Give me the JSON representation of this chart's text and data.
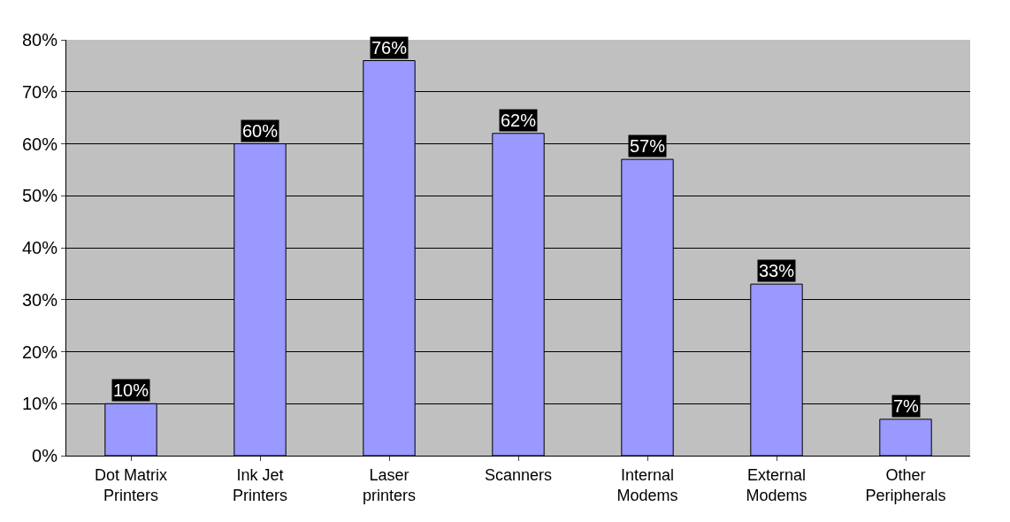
{
  "chart_data": {
    "type": "bar",
    "categories": [
      "Dot Matrix Printers",
      "Ink Jet Printers",
      "Laser printers",
      "Scanners",
      "Internal Modems",
      "External Modems",
      "Other Peripherals"
    ],
    "values": [
      10,
      60,
      76,
      62,
      57,
      33,
      7
    ],
    "value_labels": [
      "10%",
      "60%",
      "76%",
      "62%",
      "57%",
      "33%",
      "7%"
    ],
    "color": "#9999ff",
    "ylim": [
      0,
      80
    ],
    "yticks": [
      {
        "value": 0,
        "label": "0%"
      },
      {
        "value": 10,
        "label": "10%"
      },
      {
        "value": 20,
        "label": "20%"
      },
      {
        "value": 30,
        "label": "30%"
      },
      {
        "value": 40,
        "label": "40%"
      },
      {
        "value": 50,
        "label": "50%"
      },
      {
        "value": 60,
        "label": "60%"
      },
      {
        "value": 70,
        "label": "70%"
      },
      {
        "value": 80,
        "label": "80%"
      }
    ],
    "grid": "y",
    "legend": false
  }
}
